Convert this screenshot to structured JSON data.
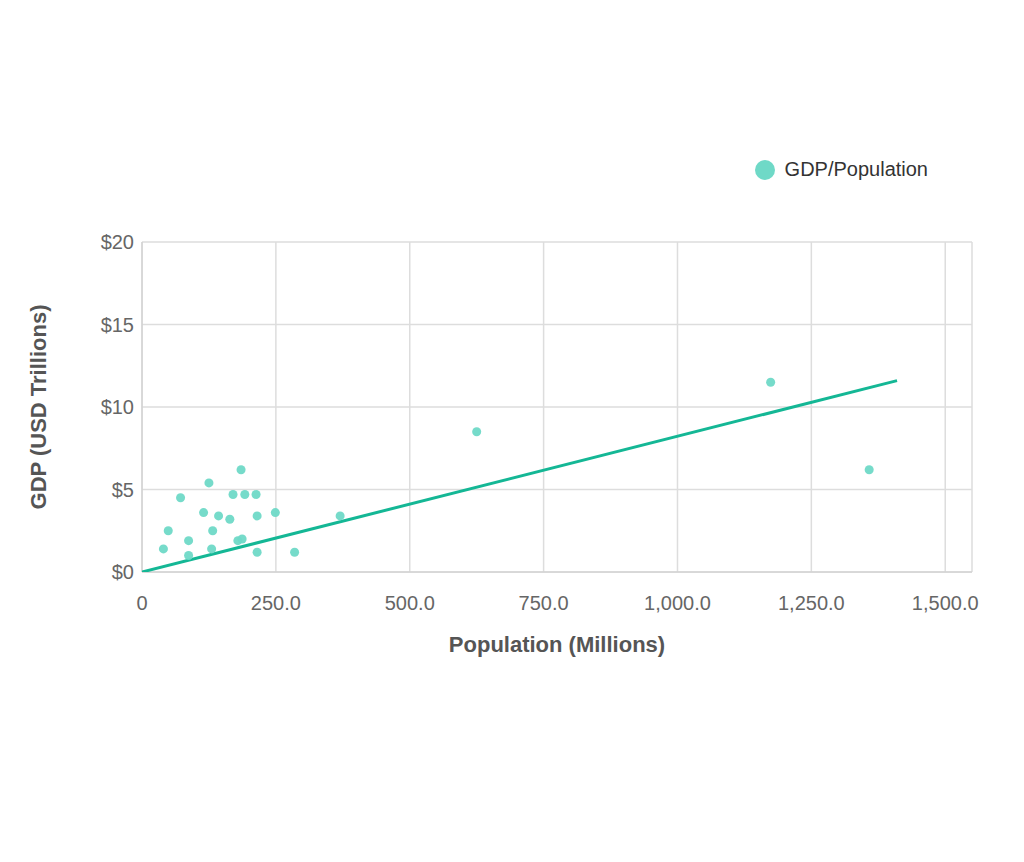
{
  "chart_data": {
    "type": "scatter",
    "x_label": "Population (Millions)",
    "y_label": "GDP (USD Trillions)",
    "series": [
      {
        "name": "GDP/Population",
        "color": "#6fd9c7",
        "marker": "circle",
        "x": [
          40,
          49,
          72,
          87,
          87,
          115,
          125,
          130,
          132,
          143,
          164,
          170,
          179,
          185,
          187,
          192,
          213,
          215,
          215,
          249,
          285,
          370,
          625,
          1174,
          1358
        ],
        "values": [
          1.4,
          2.5,
          4.5,
          1.9,
          1.0,
          3.6,
          5.4,
          1.4,
          2.5,
          3.4,
          3.2,
          4.7,
          1.9,
          6.2,
          2.0,
          4.7,
          4.7,
          3.4,
          1.2,
          3.6,
          1.2,
          3.4,
          8.5,
          11.5,
          6.2
        ]
      }
    ],
    "trendline": {
      "color": "#14b795",
      "line_style": "solid",
      "x": [
        0,
        1410
      ],
      "values": [
        0,
        11.6
      ]
    },
    "xlim": [
      0,
      1550
    ],
    "xticks": [
      0,
      {
        "value": 250,
        "label": "250.0"
      },
      {
        "value": 500,
        "label": "500.0"
      },
      {
        "value": 750,
        "label": "750.0"
      },
      {
        "value": 1000,
        "label": "1,000.0"
      },
      {
        "value": 1250,
        "label": "1,250.0"
      },
      {
        "value": 1500,
        "label": "1,500.0"
      }
    ],
    "ylim": [
      0,
      20
    ],
    "yticks": [
      {
        "value": 0,
        "label": "$0"
      },
      {
        "value": 5,
        "label": "$5"
      },
      {
        "value": 10,
        "label": "$10"
      },
      {
        "value": 15,
        "label": "$15"
      },
      {
        "value": 20,
        "label": "$20"
      }
    ],
    "grid": true,
    "legend": "top-right"
  }
}
